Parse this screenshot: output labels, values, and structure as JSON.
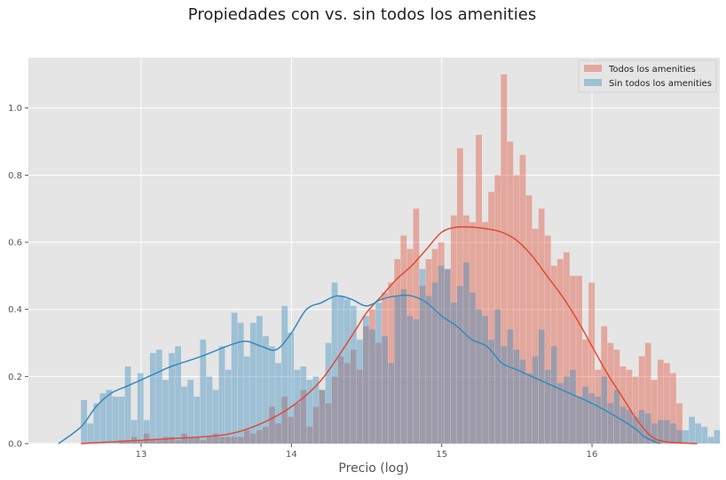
{
  "chart_data": {
    "type": "histogram",
    "title": "Propiedades con vs. sin todos los amenities",
    "xlabel": "Precio (log)",
    "ylabel": "",
    "xlim": [
      12.25,
      16.85
    ],
    "ylim": [
      0,
      1.15
    ],
    "xticks": [
      "13",
      "14",
      "15",
      "16"
    ],
    "yticks": [
      "0.0",
      "0.2",
      "0.4",
      "0.6",
      "0.8",
      "1.0"
    ],
    "grid": true,
    "legend_position": "top-right",
    "bin_width": 0.0417,
    "series": [
      {
        "name": "Todos los amenities",
        "color": "#e24a33",
        "bin_start": 12.85,
        "heights": [
          0.01,
          0.01,
          0.02,
          0.01,
          0.03,
          0.01,
          0.01,
          0.02,
          0.02,
          0.01,
          0.03,
          0.02,
          0.02,
          0.01,
          0.02,
          0.03,
          0.02,
          0.02,
          0.02,
          0.02,
          0.04,
          0.03,
          0.04,
          0.05,
          0.11,
          0.06,
          0.14,
          0.08,
          0.12,
          0.16,
          0.05,
          0.11,
          0.16,
          0.12,
          0.2,
          0.26,
          0.24,
          0.28,
          0.22,
          0.35,
          0.4,
          0.3,
          0.45,
          0.48,
          0.55,
          0.62,
          0.58,
          0.7,
          0.47,
          0.55,
          0.58,
          0.6,
          0.52,
          0.68,
          0.88,
          0.68,
          0.66,
          0.92,
          0.66,
          0.75,
          0.8,
          1.1,
          0.9,
          0.8,
          0.86,
          0.74,
          0.64,
          0.7,
          0.62,
          0.53,
          0.55,
          0.57,
          0.5,
          0.5,
          0.31,
          0.48,
          0.22,
          0.35,
          0.3,
          0.28,
          0.23,
          0.22,
          0.2,
          0.26,
          0.3,
          0.19,
          0.25,
          0.24,
          0.21,
          0.12
        ],
        "kde_x": [
          12.6,
          12.8,
          13.0,
          13.2,
          13.4,
          13.6,
          13.8,
          14.0,
          14.2,
          14.4,
          14.5,
          14.6,
          14.7,
          14.8,
          14.9,
          15.0,
          15.1,
          15.2,
          15.3,
          15.4,
          15.5,
          15.6,
          15.7,
          15.8,
          15.9,
          16.0,
          16.1,
          16.2,
          16.3,
          16.4,
          16.5,
          16.7
        ],
        "kde_y": [
          0.0,
          0.005,
          0.01,
          0.015,
          0.02,
          0.03,
          0.06,
          0.11,
          0.19,
          0.32,
          0.39,
          0.44,
          0.49,
          0.53,
          0.58,
          0.63,
          0.645,
          0.645,
          0.64,
          0.63,
          0.605,
          0.56,
          0.5,
          0.44,
          0.37,
          0.29,
          0.21,
          0.14,
          0.07,
          0.02,
          0.005,
          0.0
        ]
      },
      {
        "name": "Sin todos los amenities",
        "color": "#348abd",
        "bin_start": 12.6,
        "heights": [
          0.13,
          0.06,
          0.12,
          0.15,
          0.16,
          0.14,
          0.14,
          0.23,
          0.07,
          0.21,
          0.07,
          0.27,
          0.28,
          0.19,
          0.27,
          0.29,
          0.17,
          0.19,
          0.14,
          0.31,
          0.2,
          0.16,
          0.29,
          0.22,
          0.39,
          0.36,
          0.26,
          0.36,
          0.38,
          0.32,
          0.29,
          0.24,
          0.41,
          0.33,
          0.22,
          0.23,
          0.19,
          0.2,
          0.16,
          0.3,
          0.48,
          0.44,
          0.43,
          0.41,
          0.31,
          0.38,
          0.34,
          0.42,
          0.32,
          0.24,
          0.44,
          0.46,
          0.38,
          0.37,
          0.52,
          0.44,
          0.48,
          0.53,
          0.52,
          0.42,
          0.47,
          0.54,
          0.45,
          0.4,
          0.38,
          0.31,
          0.4,
          0.29,
          0.34,
          0.28,
          0.25,
          0.21,
          0.26,
          0.34,
          0.22,
          0.29,
          0.18,
          0.2,
          0.22,
          0.14,
          0.17,
          0.15,
          0.14,
          0.2,
          0.12,
          0.16,
          0.11,
          0.1,
          0.08,
          0.1,
          0.09,
          0.06,
          0.07,
          0.07,
          0.06,
          0.04,
          0.04,
          0.08,
          0.06,
          0.05,
          0.02,
          0.04
        ],
        "kde_x": [
          12.45,
          12.6,
          12.7,
          12.8,
          12.9,
          13.0,
          13.1,
          13.2,
          13.4,
          13.6,
          13.7,
          13.8,
          13.9,
          14.0,
          14.1,
          14.2,
          14.3,
          14.4,
          14.5,
          14.6,
          14.7,
          14.8,
          14.9,
          15.0,
          15.1,
          15.2,
          15.3,
          15.4,
          15.5,
          15.6,
          15.8,
          16.0,
          16.2,
          16.3,
          16.35,
          16.45
        ],
        "kde_y": [
          0.0,
          0.05,
          0.11,
          0.15,
          0.17,
          0.19,
          0.21,
          0.23,
          0.26,
          0.295,
          0.305,
          0.29,
          0.28,
          0.33,
          0.4,
          0.42,
          0.44,
          0.43,
          0.41,
          0.43,
          0.44,
          0.44,
          0.42,
          0.38,
          0.35,
          0.31,
          0.29,
          0.24,
          0.22,
          0.2,
          0.16,
          0.12,
          0.07,
          0.04,
          0.02,
          0.0
        ]
      }
    ]
  }
}
